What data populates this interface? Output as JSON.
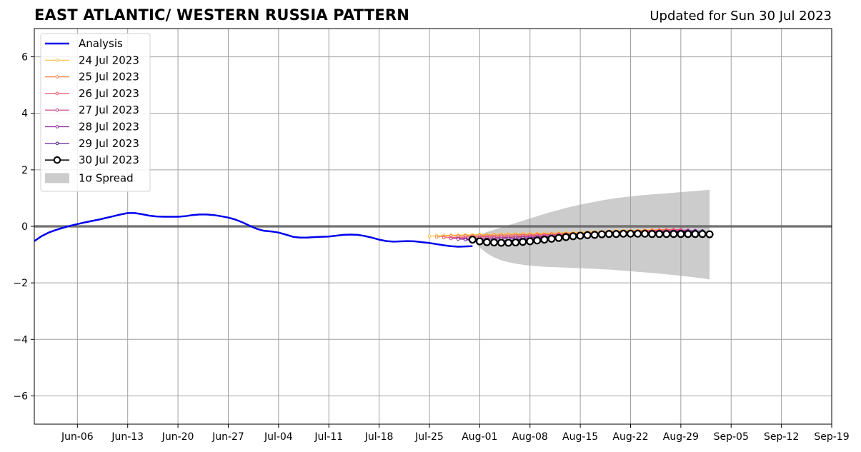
{
  "chart_data": {
    "type": "line",
    "title": "EAST ATLANTIC/ WESTERN RUSSIA PATTERN",
    "subtitle": "Updated for Sun 30 Jul 2023",
    "xlabel": "",
    "ylabel": "",
    "xlim": [
      "2023-05-31",
      "2023-09-19"
    ],
    "ylim": [
      -7,
      7
    ],
    "x_ticks": [
      "2023-06-06",
      "2023-06-13",
      "2023-06-20",
      "2023-06-27",
      "2023-07-04",
      "2023-07-11",
      "2023-07-18",
      "2023-07-25",
      "2023-08-01",
      "2023-08-08",
      "2023-08-15",
      "2023-08-22",
      "2023-08-29",
      "2023-09-05",
      "2023-09-12",
      "2023-09-19"
    ],
    "x_tick_labels": [
      "Jun-06",
      "Jun-13",
      "Jun-20",
      "Jun-27",
      "Jul-04",
      "Jul-11",
      "Jul-18",
      "Jul-25",
      "Aug-01",
      "Aug-08",
      "Aug-15",
      "Aug-22",
      "Aug-29",
      "Sep-05",
      "Sep-12",
      "Sep-19"
    ],
    "y_ticks": [
      -6,
      -4,
      -2,
      0,
      2,
      4,
      6
    ],
    "y_tick_labels": [
      "−6",
      "−4",
      "−2",
      "0",
      "2",
      "4",
      "6"
    ],
    "grid": true,
    "zero_line": 0,
    "legend_position": "top-left",
    "analysis": {
      "name": "Analysis",
      "color": "#0000ee",
      "points": [
        [
          "2023-05-31",
          -0.52
        ],
        [
          "2023-06-01",
          -0.35
        ],
        [
          "2023-06-02",
          -0.22
        ],
        [
          "2023-06-03",
          -0.13
        ],
        [
          "2023-06-04",
          -0.05
        ],
        [
          "2023-06-05",
          0.02
        ],
        [
          "2023-06-06",
          0.08
        ],
        [
          "2023-06-07",
          0.14
        ],
        [
          "2023-06-08",
          0.19
        ],
        [
          "2023-06-09",
          0.24
        ],
        [
          "2023-06-10",
          0.3
        ],
        [
          "2023-06-11",
          0.36
        ],
        [
          "2023-06-12",
          0.42
        ],
        [
          "2023-06-13",
          0.47
        ],
        [
          "2023-06-14",
          0.47
        ],
        [
          "2023-06-15",
          0.43
        ],
        [
          "2023-06-16",
          0.38
        ],
        [
          "2023-06-17",
          0.35
        ],
        [
          "2023-06-18",
          0.34
        ],
        [
          "2023-06-19",
          0.34
        ],
        [
          "2023-06-20",
          0.34
        ],
        [
          "2023-06-21",
          0.36
        ],
        [
          "2023-06-22",
          0.4
        ],
        [
          "2023-06-23",
          0.42
        ],
        [
          "2023-06-24",
          0.42
        ],
        [
          "2023-06-25",
          0.4
        ],
        [
          "2023-06-26",
          0.36
        ],
        [
          "2023-06-27",
          0.31
        ],
        [
          "2023-06-28",
          0.24
        ],
        [
          "2023-06-29",
          0.14
        ],
        [
          "2023-06-30",
          0.02
        ],
        [
          "2023-07-01",
          -0.09
        ],
        [
          "2023-07-02",
          -0.16
        ],
        [
          "2023-07-03",
          -0.18
        ],
        [
          "2023-07-04",
          -0.22
        ],
        [
          "2023-07-05",
          -0.29
        ],
        [
          "2023-07-06",
          -0.37
        ],
        [
          "2023-07-07",
          -0.4
        ],
        [
          "2023-07-08",
          -0.4
        ],
        [
          "2023-07-09",
          -0.38
        ],
        [
          "2023-07-10",
          -0.37
        ],
        [
          "2023-07-11",
          -0.36
        ],
        [
          "2023-07-12",
          -0.33
        ],
        [
          "2023-07-13",
          -0.3
        ],
        [
          "2023-07-14",
          -0.29
        ],
        [
          "2023-07-15",
          -0.3
        ],
        [
          "2023-07-16",
          -0.34
        ],
        [
          "2023-07-17",
          -0.4
        ],
        [
          "2023-07-18",
          -0.47
        ],
        [
          "2023-07-19",
          -0.52
        ],
        [
          "2023-07-20",
          -0.54
        ],
        [
          "2023-07-21",
          -0.53
        ],
        [
          "2023-07-22",
          -0.52
        ],
        [
          "2023-07-23",
          -0.53
        ],
        [
          "2023-07-24",
          -0.56
        ],
        [
          "2023-07-25",
          -0.59
        ],
        [
          "2023-07-26",
          -0.63
        ],
        [
          "2023-07-27",
          -0.67
        ],
        [
          "2023-07-28",
          -0.7
        ],
        [
          "2023-07-29",
          -0.72
        ],
        [
          "2023-07-30",
          -0.71
        ],
        [
          "2023-07-31",
          -0.7
        ]
      ]
    },
    "forecasts": [
      {
        "name": "24 Jul 2023",
        "color": "#fbbf45",
        "start": "2023-07-25",
        "values": [
          -0.35,
          -0.33,
          -0.32,
          -0.31,
          -0.31,
          -0.3,
          -0.3,
          -0.29,
          -0.29,
          -0.28,
          -0.28,
          -0.27,
          -0.27,
          -0.26,
          -0.26,
          -0.25,
          -0.24,
          -0.24,
          -0.23,
          -0.22,
          -0.22,
          -0.21,
          -0.2,
          -0.19,
          -0.18,
          -0.17,
          -0.16,
          -0.15,
          -0.15,
          -0.14,
          -0.13,
          -0.12,
          -0.12,
          -0.11
        ]
      },
      {
        "name": "25 Jul 2023",
        "color": "#f57d3f",
        "start": "2023-07-26",
        "values": [
          -0.38,
          -0.36,
          -0.34,
          -0.34,
          -0.33,
          -0.33,
          -0.32,
          -0.32,
          -0.31,
          -0.31,
          -0.3,
          -0.3,
          -0.29,
          -0.29,
          -0.28,
          -0.28,
          -0.27,
          -0.26,
          -0.25,
          -0.25,
          -0.24,
          -0.23,
          -0.22,
          -0.21,
          -0.2,
          -0.19,
          -0.18,
          -0.17,
          -0.16,
          -0.15,
          -0.14,
          -0.13,
          -0.12,
          -0.11
        ]
      },
      {
        "name": "26 Jul 2023",
        "color": "#e8556c",
        "start": "2023-07-27",
        "values": [
          -0.4,
          -0.4,
          -0.39,
          -0.38,
          -0.37,
          -0.37,
          -0.36,
          -0.36,
          -0.35,
          -0.35,
          -0.34,
          -0.33,
          -0.32,
          -0.31,
          -0.3,
          -0.29,
          -0.28,
          -0.27,
          -0.26,
          -0.25,
          -0.24,
          -0.23,
          -0.22,
          -0.21,
          -0.2,
          -0.19,
          -0.18,
          -0.17,
          -0.16,
          -0.15,
          -0.14,
          -0.13,
          -0.12,
          -0.11
        ]
      },
      {
        "name": "27 Jul 2023",
        "color": "#c23b8a",
        "start": "2023-07-28",
        "values": [
          -0.43,
          -0.43,
          -0.42,
          -0.42,
          -0.41,
          -0.41,
          -0.4,
          -0.39,
          -0.39,
          -0.38,
          -0.37,
          -0.36,
          -0.35,
          -0.34,
          -0.33,
          -0.31,
          -0.3,
          -0.29,
          -0.28,
          -0.27,
          -0.26,
          -0.25,
          -0.24,
          -0.23,
          -0.22,
          -0.21,
          -0.2,
          -0.19,
          -0.18,
          -0.17,
          -0.16,
          -0.15,
          -0.14,
          -0.13
        ]
      },
      {
        "name": "28 Jul 2023",
        "color": "#8a2596",
        "start": "2023-07-29",
        "values": [
          -0.45,
          -0.46,
          -0.46,
          -0.46,
          -0.45,
          -0.45,
          -0.44,
          -0.43,
          -0.42,
          -0.41,
          -0.4,
          -0.38,
          -0.37,
          -0.36,
          -0.34,
          -0.33,
          -0.32,
          -0.31,
          -0.3,
          -0.29,
          -0.28,
          -0.27,
          -0.26,
          -0.25,
          -0.24,
          -0.23,
          -0.22,
          -0.21,
          -0.2,
          -0.19,
          -0.18,
          -0.17,
          -0.16,
          -0.15
        ]
      },
      {
        "name": "29 Jul 2023",
        "color": "#4b148c",
        "start": "2023-07-30",
        "values": [
          -0.47,
          -0.5,
          -0.52,
          -0.52,
          -0.52,
          -0.51,
          -0.5,
          -0.48,
          -0.46,
          -0.44,
          -0.42,
          -0.4,
          -0.38,
          -0.36,
          -0.35,
          -0.33,
          -0.32,
          -0.31,
          -0.3,
          -0.29,
          -0.28,
          -0.27,
          -0.26,
          -0.25,
          -0.24,
          -0.24,
          -0.23,
          -0.22,
          -0.21,
          -0.2,
          -0.19,
          -0.18,
          -0.17,
          -0.16
        ]
      }
    ],
    "latest_forecast": {
      "name": "30 Jul 2023",
      "color": "#000000",
      "start": "2023-07-31",
      "values": [
        -0.47,
        -0.53,
        -0.56,
        -0.57,
        -0.58,
        -0.58,
        -0.57,
        -0.55,
        -0.53,
        -0.5,
        -0.47,
        -0.44,
        -0.41,
        -0.38,
        -0.35,
        -0.33,
        -0.31,
        -0.3,
        -0.28,
        -0.27,
        -0.27,
        -0.26,
        -0.26,
        -0.26,
        -0.26,
        -0.27,
        -0.27,
        -0.27,
        -0.27,
        -0.27,
        -0.27,
        -0.27,
        -0.27,
        -0.28
      ]
    },
    "spread": {
      "name": "1σ Spread",
      "color": "#cccccc",
      "start": "2023-07-31",
      "upper": [
        -0.47,
        -0.3,
        -0.2,
        -0.12,
        -0.04,
        0.04,
        0.12,
        0.2,
        0.28,
        0.36,
        0.44,
        0.51,
        0.58,
        0.65,
        0.71,
        0.77,
        0.82,
        0.87,
        0.92,
        0.96,
        1.0,
        1.03,
        1.06,
        1.09,
        1.11,
        1.13,
        1.15,
        1.17,
        1.19,
        1.21,
        1.23,
        1.25,
        1.27,
        1.3
      ],
      "lower": [
        -0.47,
        -0.75,
        -0.95,
        -1.1,
        -1.2,
        -1.27,
        -1.32,
        -1.36,
        -1.39,
        -1.41,
        -1.43,
        -1.44,
        -1.45,
        -1.46,
        -1.47,
        -1.48,
        -1.49,
        -1.5,
        -1.52,
        -1.53,
        -1.55,
        -1.57,
        -1.59,
        -1.61,
        -1.63,
        -1.65,
        -1.67,
        -1.7,
        -1.72,
        -1.75,
        -1.78,
        -1.81,
        -1.84,
        -1.88
      ]
    }
  }
}
